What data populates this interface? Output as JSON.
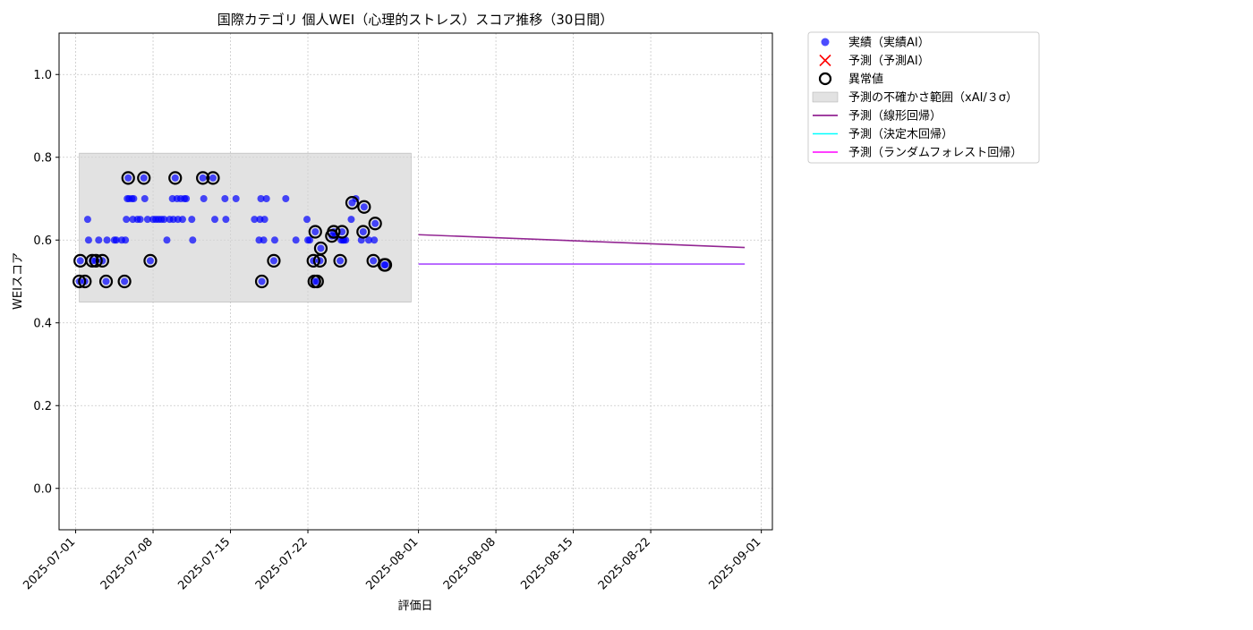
{
  "chart_data": {
    "type": "scatter",
    "title": "国際カテゴリ 個人WEI（心理的ストレス）スコア推移（30日間）",
    "xlabel": "評価日",
    "ylabel": "WEIスコア",
    "xlim": [
      "2025-06-29T12:00",
      "2025-09-02"
    ],
    "ylim": [
      -0.1,
      1.1
    ],
    "x_ticks": [
      "2025-07-01",
      "2025-07-08",
      "2025-07-15",
      "2025-07-22",
      "2025-08-01",
      "2025-08-08",
      "2025-08-15",
      "2025-08-22",
      "2025-09-01"
    ],
    "y_ticks": [
      0.0,
      0.2,
      0.4,
      0.6,
      0.8,
      1.0
    ],
    "y_tick_labels": [
      "0.0",
      "0.2",
      "0.4",
      "0.6",
      "0.8",
      "1.0"
    ],
    "grid": true,
    "legend_position": "outside top-right",
    "colors": {
      "actual": "#0000ff",
      "predicted": "#ff0000",
      "anomaly_edge": "#000000",
      "band": "#d3d3d3",
      "linear": "#800080",
      "tree": "#00ffff",
      "forest": "#ff00ff"
    },
    "legend": [
      {
        "key": "actual",
        "label": "実績（実績AI）",
        "marker": "dot"
      },
      {
        "key": "predicted",
        "label": "予測（予測AI）",
        "marker": "x"
      },
      {
        "key": "anomaly",
        "label": "異常値",
        "marker": "ring"
      },
      {
        "key": "band",
        "label": "予測の不確かさ範囲（xAI/３σ）",
        "marker": "rect"
      },
      {
        "key": "linear",
        "label": "予測（線形回帰）",
        "marker": "line"
      },
      {
        "key": "tree",
        "label": "予測（決定木回帰）",
        "marker": "line"
      },
      {
        "key": "forest",
        "label": "予測（ランダムフォレスト回帰）",
        "marker": "line"
      }
    ],
    "uncertainty_band": {
      "x_start": "2025-07-01T08:00",
      "x_end": "2025-07-31T08:00",
      "y_low": 0.45,
      "y_high": 0.81
    },
    "series": [
      {
        "name": "実績（実績AI）",
        "kind": "scatter",
        "points": [
          [
            "2025-07-01T08:00",
            0.5
          ],
          [
            "2025-07-01T10:00",
            0.55
          ],
          [
            "2025-07-01T20:00",
            0.5
          ],
          [
            "2025-07-02T02:00",
            0.65
          ],
          [
            "2025-07-02T04:00",
            0.6
          ],
          [
            "2025-07-02T12:00",
            0.55
          ],
          [
            "2025-07-02T20:00",
            0.55
          ],
          [
            "2025-07-03T02:00",
            0.6
          ],
          [
            "2025-07-03T10:00",
            0.55
          ],
          [
            "2025-07-03T18:00",
            0.5
          ],
          [
            "2025-07-03T20:00",
            0.6
          ],
          [
            "2025-07-04T12:00",
            0.6
          ],
          [
            "2025-07-04T16:00",
            0.6
          ],
          [
            "2025-07-05T04:00",
            0.6
          ],
          [
            "2025-07-05T10:00",
            0.5
          ],
          [
            "2025-07-05T12:00",
            0.6
          ],
          [
            "2025-07-05T14:00",
            0.65
          ],
          [
            "2025-07-05T16:00",
            0.7
          ],
          [
            "2025-07-05T18:00",
            0.75
          ],
          [
            "2025-07-05T20:00",
            0.7
          ],
          [
            "2025-07-06T02:00",
            0.7
          ],
          [
            "2025-07-06T04:00",
            0.65
          ],
          [
            "2025-07-06T06:00",
            0.7
          ],
          [
            "2025-07-06T14:00",
            0.65
          ],
          [
            "2025-07-06T20:00",
            0.65
          ],
          [
            "2025-07-07T04:00",
            0.75
          ],
          [
            "2025-07-07T06:00",
            0.7
          ],
          [
            "2025-07-07T12:00",
            0.65
          ],
          [
            "2025-07-07T18:00",
            0.55
          ],
          [
            "2025-07-08T00:00",
            0.65
          ],
          [
            "2025-07-08T06:00",
            0.65
          ],
          [
            "2025-07-08T12:00",
            0.65
          ],
          [
            "2025-07-08T18:00",
            0.65
          ],
          [
            "2025-07-09T00:00",
            0.65
          ],
          [
            "2025-07-09T06:00",
            0.6
          ],
          [
            "2025-07-09T12:00",
            0.65
          ],
          [
            "2025-07-09T18:00",
            0.7
          ],
          [
            "2025-07-09T20:00",
            0.65
          ],
          [
            "2025-07-10T00:00",
            0.75
          ],
          [
            "2025-07-10T04:00",
            0.7
          ],
          [
            "2025-07-10T06:00",
            0.65
          ],
          [
            "2025-07-10T12:00",
            0.7
          ],
          [
            "2025-07-10T16:00",
            0.65
          ],
          [
            "2025-07-10T20:00",
            0.7
          ],
          [
            "2025-07-11T00:00",
            0.7
          ],
          [
            "2025-07-11T12:00",
            0.65
          ],
          [
            "2025-07-11T14:00",
            0.6
          ],
          [
            "2025-07-12T12:00",
            0.75
          ],
          [
            "2025-07-12T14:00",
            0.7
          ],
          [
            "2025-07-13T10:00",
            0.75
          ],
          [
            "2025-07-13T14:00",
            0.65
          ],
          [
            "2025-07-14T12:00",
            0.7
          ],
          [
            "2025-07-14T14:00",
            0.65
          ],
          [
            "2025-07-15T12:00",
            0.7
          ],
          [
            "2025-07-17T04:00",
            0.65
          ],
          [
            "2025-07-17T14:00",
            0.6
          ],
          [
            "2025-07-17T16:00",
            0.65
          ],
          [
            "2025-07-17T18:00",
            0.7
          ],
          [
            "2025-07-17T20:00",
            0.5
          ],
          [
            "2025-07-18T00:00",
            0.6
          ],
          [
            "2025-07-18T02:00",
            0.65
          ],
          [
            "2025-07-18T06:00",
            0.7
          ],
          [
            "2025-07-18T22:00",
            0.55
          ],
          [
            "2025-07-19T00:00",
            0.6
          ],
          [
            "2025-07-20T00:00",
            0.7
          ],
          [
            "2025-07-20T22:00",
            0.6
          ],
          [
            "2025-07-21T22:00",
            0.65
          ],
          [
            "2025-07-22T00:00",
            0.6
          ],
          [
            "2025-07-22T04:00",
            0.6
          ],
          [
            "2025-07-22T12:00",
            0.55
          ],
          [
            "2025-07-22T14:00",
            0.5
          ],
          [
            "2025-07-22T16:00",
            0.62
          ],
          [
            "2025-07-22T20:00",
            0.5
          ],
          [
            "2025-07-23T02:00",
            0.55
          ],
          [
            "2025-07-23T04:00",
            0.58
          ],
          [
            "2025-07-24T04:00",
            0.61
          ],
          [
            "2025-07-24T08:00",
            0.62
          ],
          [
            "2025-07-24T12:00",
            0.61
          ],
          [
            "2025-07-24T22:00",
            0.55
          ],
          [
            "2025-07-25T00:00",
            0.6
          ],
          [
            "2025-07-25T02:00",
            0.62
          ],
          [
            "2025-07-25T04:00",
            0.6
          ],
          [
            "2025-07-25T06:00",
            0.6
          ],
          [
            "2025-07-25T10:00",
            0.6
          ],
          [
            "2025-07-25T22:00",
            0.65
          ],
          [
            "2025-07-26T00:00",
            0.69
          ],
          [
            "2025-07-26T08:00",
            0.7
          ],
          [
            "2025-07-26T20:00",
            0.6
          ],
          [
            "2025-07-27T00:00",
            0.62
          ],
          [
            "2025-07-27T02:00",
            0.68
          ],
          [
            "2025-07-27T12:00",
            0.6
          ],
          [
            "2025-07-27T22:00",
            0.55
          ],
          [
            "2025-07-28T00:00",
            0.6
          ],
          [
            "2025-07-28T02:00",
            0.64
          ],
          [
            "2025-07-28T22:00",
            0.54
          ],
          [
            "2025-07-29T00:00",
            0.54
          ]
        ]
      },
      {
        "name": "異常値",
        "kind": "ring",
        "points": [
          [
            "2025-07-01T08:00",
            0.5
          ],
          [
            "2025-07-01T10:00",
            0.55
          ],
          [
            "2025-07-01T20:00",
            0.5
          ],
          [
            "2025-07-02T12:00",
            0.55
          ],
          [
            "2025-07-02T20:00",
            0.55
          ],
          [
            "2025-07-03T10:00",
            0.55
          ],
          [
            "2025-07-03T18:00",
            0.5
          ],
          [
            "2025-07-05T10:00",
            0.5
          ],
          [
            "2025-07-05T18:00",
            0.75
          ],
          [
            "2025-07-07T04:00",
            0.75
          ],
          [
            "2025-07-07T18:00",
            0.55
          ],
          [
            "2025-07-10T00:00",
            0.75
          ],
          [
            "2025-07-12T12:00",
            0.75
          ],
          [
            "2025-07-13T10:00",
            0.75
          ],
          [
            "2025-07-17T20:00",
            0.5
          ],
          [
            "2025-07-18T22:00",
            0.55
          ],
          [
            "2025-07-22T12:00",
            0.55
          ],
          [
            "2025-07-22T14:00",
            0.5
          ],
          [
            "2025-07-22T16:00",
            0.62
          ],
          [
            "2025-07-22T20:00",
            0.5
          ],
          [
            "2025-07-23T02:00",
            0.55
          ],
          [
            "2025-07-23T04:00",
            0.58
          ],
          [
            "2025-07-24T04:00",
            0.61
          ],
          [
            "2025-07-24T08:00",
            0.62
          ],
          [
            "2025-07-24T22:00",
            0.55
          ],
          [
            "2025-07-25T02:00",
            0.62
          ],
          [
            "2025-07-26T00:00",
            0.69
          ],
          [
            "2025-07-27T00:00",
            0.62
          ],
          [
            "2025-07-27T02:00",
            0.68
          ],
          [
            "2025-07-27T22:00",
            0.55
          ],
          [
            "2025-07-28T02:00",
            0.64
          ],
          [
            "2025-07-28T22:00",
            0.54
          ],
          [
            "2025-07-29T00:00",
            0.54
          ]
        ]
      },
      {
        "name": "予測（線形回帰）",
        "kind": "line",
        "color_key": "linear",
        "points": [
          [
            "2025-08-01T00:00",
            0.613
          ],
          [
            "2025-08-30T12:00",
            0.582
          ]
        ]
      },
      {
        "name": "予測（決定木回帰）",
        "kind": "line",
        "color_key": "tree",
        "points": [
          [
            "2025-08-01T00:00",
            0.542
          ],
          [
            "2025-08-30T12:00",
            0.542
          ]
        ]
      },
      {
        "name": "予測（ランダムフォレスト回帰）",
        "kind": "line",
        "color_key": "forest",
        "points": [
          [
            "2025-08-01T00:00",
            0.542
          ],
          [
            "2025-08-30T12:00",
            0.542
          ]
        ]
      }
    ]
  }
}
